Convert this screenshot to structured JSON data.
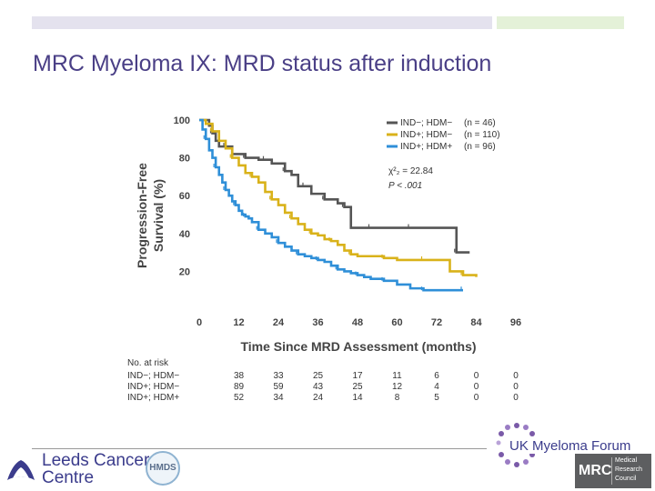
{
  "slide": {
    "title": "MRC Myeloma IX: MRD status after induction"
  },
  "colors": {
    "accent": "#4a3f86",
    "bar_left": "#e4e2ee",
    "bar_right": "#e4f1d8"
  },
  "chart_data": {
    "type": "line",
    "subtype": "kaplan-meier step curves",
    "title": "",
    "xlabel": "Time Since MRD Assessment (months)",
    "ylabel_lines": [
      "Progression-Free",
      "Survival (%)"
    ],
    "xlim": [
      0,
      96
    ],
    "ylim": [
      0,
      100
    ],
    "xticks": [
      0,
      12,
      24,
      36,
      48,
      60,
      72,
      84,
      96
    ],
    "yticks": [
      20,
      40,
      60,
      80,
      100
    ],
    "grid": false,
    "legend_position": "top-right",
    "series": [
      {
        "name": "IND−; HDM−",
        "n_label": "(n = 46)",
        "color": "#555555",
        "x": [
          0,
          3,
          4,
          5,
          6,
          8,
          10,
          12,
          14,
          16,
          18,
          20,
          22,
          24,
          26,
          28,
          30,
          32,
          34,
          36,
          38,
          40,
          42,
          44,
          46,
          48,
          52,
          56,
          60,
          64,
          68,
          72,
          78,
          80,
          82
        ],
        "y": [
          100,
          97,
          93,
          89,
          86,
          86,
          82,
          82,
          80,
          80,
          79,
          79,
          77,
          77,
          73,
          71,
          65,
          65,
          61,
          61,
          58,
          58,
          56,
          54,
          43,
          43,
          43,
          43,
          43,
          43,
          43,
          43,
          30,
          30,
          30
        ]
      },
      {
        "name": "IND+; HDM−",
        "n_label": "(n = 110)",
        "color": "#d9b21a",
        "x": [
          0,
          2,
          4,
          6,
          8,
          10,
          12,
          14,
          16,
          18,
          20,
          22,
          24,
          26,
          28,
          30,
          32,
          34,
          36,
          38,
          40,
          42,
          44,
          46,
          48,
          52,
          56,
          60,
          64,
          68,
          72,
          76,
          80,
          84
        ],
        "y": [
          100,
          98,
          94,
          89,
          85,
          80,
          76,
          72,
          70,
          67,
          62,
          58,
          55,
          51,
          48,
          45,
          42,
          40,
          39,
          37,
          36,
          34,
          31,
          29,
          28,
          28,
          27,
          26,
          26,
          26,
          26,
          20,
          18,
          17
        ]
      },
      {
        "name": "IND+; HDM+",
        "n_label": "(n = 96)",
        "color": "#2f8fd8",
        "x": [
          0,
          1,
          2,
          3,
          4,
          5,
          6,
          7,
          8,
          9,
          10,
          11,
          12,
          13,
          14,
          15,
          16,
          18,
          20,
          22,
          24,
          26,
          28,
          30,
          32,
          34,
          36,
          38,
          40,
          42,
          44,
          46,
          48,
          50,
          52,
          56,
          60,
          64,
          68,
          72,
          76,
          80
        ],
        "y": [
          100,
          95,
          90,
          84,
          80,
          75,
          71,
          67,
          63,
          60,
          57,
          55,
          52,
          50,
          49,
          48,
          46,
          42,
          40,
          38,
          35,
          33,
          31,
          29,
          28,
          27,
          26,
          25,
          23,
          21,
          20,
          19,
          18,
          17,
          16,
          15,
          13,
          11,
          10,
          10,
          10,
          10
        ]
      }
    ],
    "stat_lines": [
      "χ²₂ = 22.84",
      "P < .001"
    ],
    "number_at_risk": {
      "title": "No. at risk",
      "rows": [
        {
          "label": "IND−; HDM−",
          "values": [
            "38",
            "33",
            "25",
            "17",
            "11",
            "6",
            "0",
            "0"
          ]
        },
        {
          "label": "IND+; HDM−",
          "values": [
            "89",
            "59",
            "43",
            "25",
            "12",
            "4",
            "0",
            "0"
          ]
        },
        {
          "label": "IND+; HDM+",
          "values": [
            "52",
            "34",
            "24",
            "14",
            "8",
            "5",
            "0",
            "0"
          ]
        }
      ]
    }
  },
  "footer": {
    "leeds_line1": "Leeds Cancer",
    "leeds_line2": "Centre",
    "hmds": "HMDS",
    "uk_myeloma_forum": "UK Myeloma Forum",
    "mrc_abbrev": "MRC",
    "mrc_line1": "Medical",
    "mrc_line2": "Research",
    "mrc_line3": "Council"
  }
}
